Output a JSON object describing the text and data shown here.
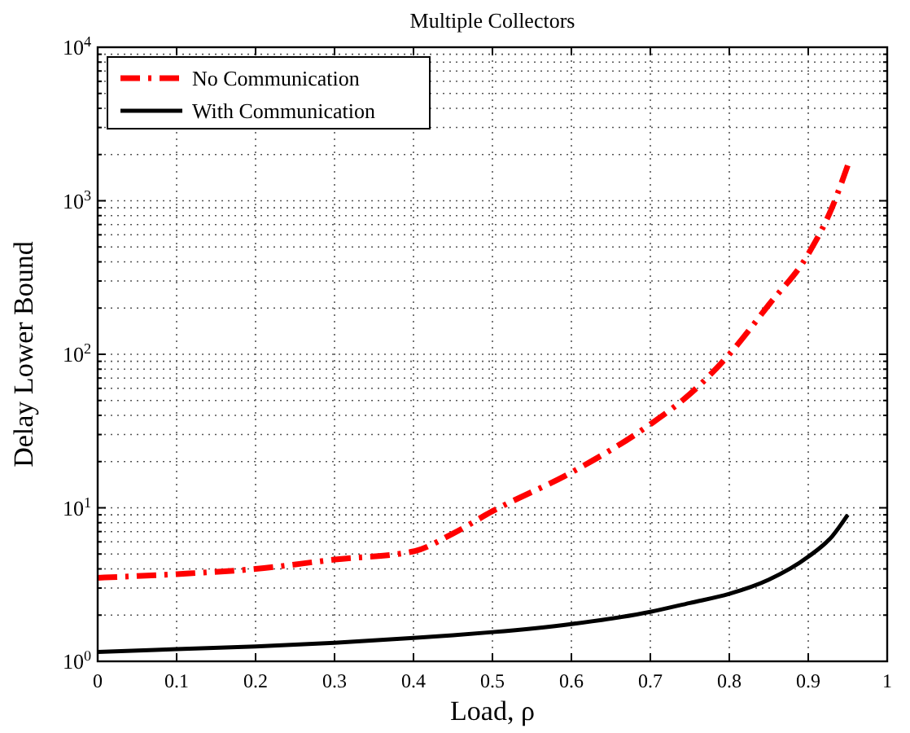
{
  "chart_data": {
    "type": "line",
    "title": "Multiple Collectors",
    "xlabel": "Load, ρ",
    "ylabel": "Delay Lower Bound",
    "log": "y",
    "grid": true,
    "legend": "top left",
    "xlim": [
      0,
      1
    ],
    "xticks": [
      0,
      0.1,
      0.2,
      0.3,
      0.4,
      0.5,
      0.6,
      0.7,
      0.8,
      0.9,
      1
    ],
    "ylim": [
      1,
      10000
    ],
    "yticks": [
      {
        "value": 1,
        "label": "10$^{0}$"
      },
      {
        "value": 2,
        "label": null
      },
      {
        "value": 3,
        "label": null
      },
      {
        "value": 4,
        "label": null
      },
      {
        "value": 5,
        "label": null
      },
      {
        "value": 6,
        "label": null
      },
      {
        "value": 7,
        "label": null
      },
      {
        "value": 8,
        "label": null
      },
      {
        "value": 9,
        "label": null
      },
      {
        "value": 10,
        "label": "10$^{1}$"
      },
      {
        "value": 20,
        "label": null
      },
      {
        "value": 30,
        "label": null
      },
      {
        "value": 40,
        "label": null
      },
      {
        "value": 50,
        "label": null
      },
      {
        "value": 60,
        "label": null
      },
      {
        "value": 70,
        "label": null
      },
      {
        "value": 80,
        "label": null
      },
      {
        "value": 90,
        "label": null
      },
      {
        "value": 100,
        "label": "10$^{2}$"
      },
      {
        "value": 200,
        "label": null
      },
      {
        "value": 300,
        "label": null
      },
      {
        "value": 400,
        "label": null
      },
      {
        "value": 500,
        "label": null
      },
      {
        "value": 600,
        "label": null
      },
      {
        "value": 700,
        "label": null
      },
      {
        "value": 800,
        "label": null
      },
      {
        "value": 900,
        "label": null
      },
      {
        "value": 1000,
        "label": "10$^{3}$"
      },
      {
        "value": 2000,
        "label": null
      },
      {
        "value": 3000,
        "label": null
      },
      {
        "value": 4000,
        "label": null
      },
      {
        "value": 5000,
        "label": null
      },
      {
        "value": 6000,
        "label": null
      },
      {
        "value": 7000,
        "label": null
      },
      {
        "value": 8000,
        "label": null
      },
      {
        "value": 9000,
        "label": null
      },
      {
        "value": 10000,
        "label": "10$^{4}$"
      }
    ],
    "x": [
      0,
      0.1,
      0.2,
      0.3,
      0.4,
      0.45,
      0.5,
      0.6,
      0.7,
      0.75,
      0.8,
      0.85,
      0.9,
      0.93,
      0.95
    ],
    "series": [
      {
        "name": "No Communication",
        "color": "#ff0000",
        "line_style": "dashed",
        "values": [
          3.5,
          3.7,
          4.0,
          4.6,
          5.2,
          6.8,
          9.5,
          17,
          35,
          55,
          100,
          210,
          450,
          900,
          1700
        ]
      },
      {
        "name": "With Communication",
        "color": "#000000",
        "line_style": "solid",
        "values": [
          1.15,
          1.2,
          1.25,
          1.32,
          1.42,
          1.48,
          1.55,
          1.75,
          2.1,
          2.4,
          2.75,
          3.4,
          4.8,
          6.5,
          9
        ]
      }
    ]
  }
}
